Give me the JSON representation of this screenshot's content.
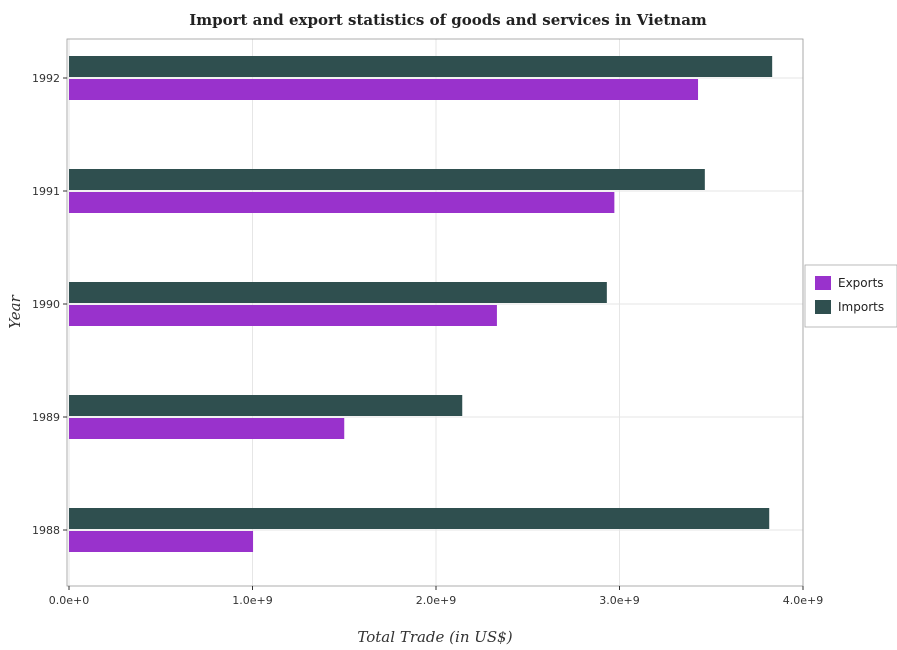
{
  "chart_data": {
    "type": "bar",
    "orientation": "horizontal",
    "title": "Import and export statistics of goods and services in Vietnam",
    "xlabel": "Total Trade (in US$)",
    "ylabel": "Year",
    "categories": [
      "1988",
      "1989",
      "1990",
      "1991",
      "1992"
    ],
    "series": [
      {
        "name": "Exports",
        "color": "#9932cc",
        "values": [
          1003000000,
          1500000000,
          2332000000,
          2972000000,
          3428000000
        ]
      },
      {
        "name": "Imports",
        "color": "#2f4f4f",
        "values": [
          3816000000,
          2143000000,
          2931000000,
          3465000000,
          3832000000
        ]
      }
    ],
    "xlim": [
      0,
      4000000000
    ],
    "xticks": [
      0,
      1000000000,
      2000000000,
      3000000000,
      4000000000
    ],
    "xtick_labels": [
      "0.0e+0",
      "1.0e+9",
      "2.0e+9",
      "3.0e+9",
      "4.0e+9"
    ],
    "grid": true,
    "legend_position": "right"
  }
}
